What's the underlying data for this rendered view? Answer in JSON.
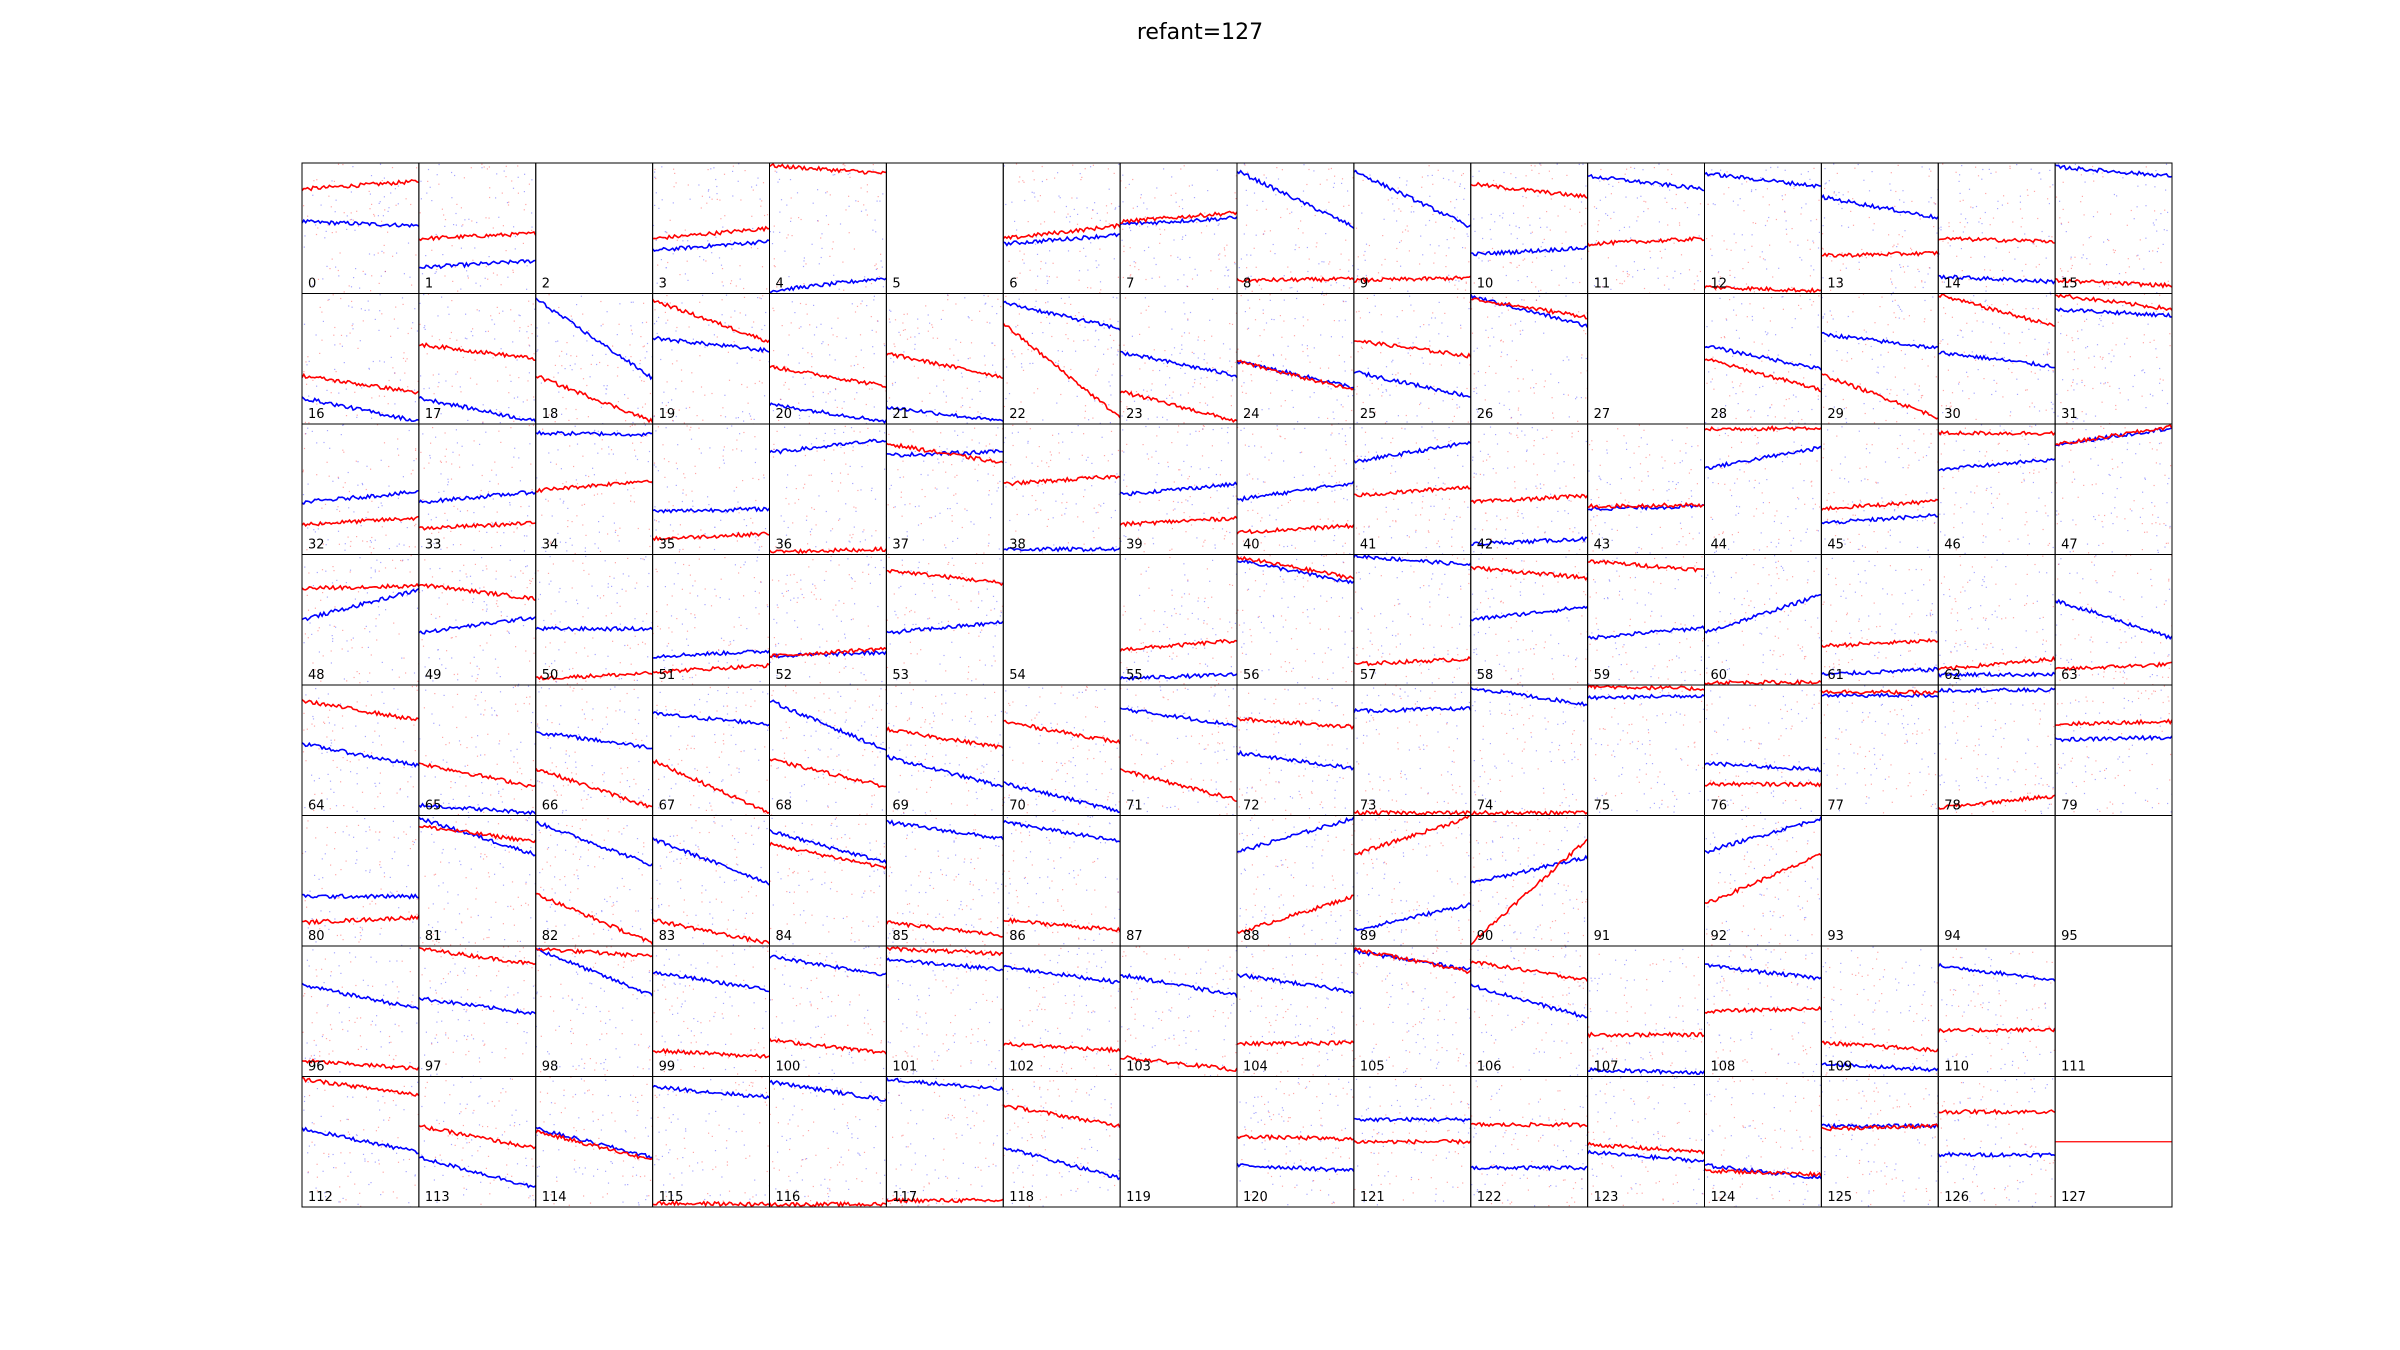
{
  "title": "refant=127",
  "chart_data": {
    "type": "scatter",
    "title": "refant=127",
    "grid_rows": 8,
    "grid_cols": 16,
    "colors": {
      "pol_a": "#0000ff",
      "pol_b": "#ff0000",
      "frame": "#000000"
    },
    "panels": [
      {
        "label": "0",
        "blue": [
          0.55,
          0.52
        ],
        "red": [
          0.8,
          0.86
        ]
      },
      {
        "label": "1",
        "blue": [
          0.2,
          0.25
        ],
        "red": [
          0.42,
          0.46
        ]
      },
      {
        "label": "2",
        "empty": true
      },
      {
        "label": "3",
        "blue": [
          0.33,
          0.4
        ],
        "red": [
          0.42,
          0.5
        ]
      },
      {
        "label": "4",
        "blue": [
          0.02,
          0.12
        ],
        "red": [
          0.98,
          0.92
        ]
      },
      {
        "label": "5",
        "empty": true
      },
      {
        "label": "6",
        "blue": [
          0.38,
          0.45
        ],
        "red": [
          0.42,
          0.52
        ]
      },
      {
        "label": "7",
        "blue": [
          0.53,
          0.58
        ],
        "red": [
          0.55,
          0.62
        ]
      },
      {
        "label": "8",
        "blue": [
          0.94,
          0.51
        ],
        "red": [
          0.1,
          0.11
        ]
      },
      {
        "label": "9",
        "blue": [
          0.94,
          0.51
        ],
        "red": [
          0.1,
          0.12
        ]
      },
      {
        "label": "10",
        "blue": [
          0.3,
          0.35
        ],
        "red": [
          0.84,
          0.74
        ]
      },
      {
        "label": "11",
        "blue": [
          0.9,
          0.8
        ],
        "red": [
          0.38,
          0.42
        ]
      },
      {
        "label": "12",
        "blue": [
          0.92,
          0.82
        ],
        "red": [
          0.05,
          0.02
        ]
      },
      {
        "label": "13",
        "blue": [
          0.74,
          0.58
        ],
        "red": [
          0.29,
          0.31
        ]
      },
      {
        "label": "14",
        "blue": [
          0.13,
          0.09
        ],
        "red": [
          0.42,
          0.4
        ]
      },
      {
        "label": "15",
        "blue": [
          0.97,
          0.9
        ],
        "red": [
          0.1,
          0.06
        ]
      },
      {
        "label": "16",
        "blue": [
          0.2,
          0.02
        ],
        "red": [
          0.37,
          0.24
        ]
      },
      {
        "label": "17",
        "blue": [
          0.2,
          0.02
        ],
        "red": [
          0.61,
          0.5
        ]
      },
      {
        "label": "18",
        "blue": [
          0.96,
          0.35
        ],
        "red": [
          0.37,
          0.02
        ]
      },
      {
        "label": "19",
        "blue": [
          0.66,
          0.56
        ],
        "red": [
          0.95,
          0.63
        ]
      },
      {
        "label": "20",
        "blue": [
          0.15,
          0.02
        ],
        "red": [
          0.44,
          0.29
        ]
      },
      {
        "label": "21",
        "blue": [
          0.13,
          0.02
        ],
        "red": [
          0.54,
          0.36
        ]
      },
      {
        "label": "22",
        "blue": [
          0.93,
          0.73
        ],
        "red": [
          0.77,
          0.05
        ]
      },
      {
        "label": "23",
        "blue": [
          0.55,
          0.37
        ],
        "red": [
          0.25,
          0.02
        ]
      },
      {
        "label": "24",
        "blue": [
          0.48,
          0.28
        ],
        "red": [
          0.48,
          0.26
        ]
      },
      {
        "label": "25",
        "blue": [
          0.4,
          0.21
        ],
        "red": [
          0.64,
          0.52
        ]
      },
      {
        "label": "26",
        "blue": [
          0.98,
          0.75
        ],
        "red": [
          0.96,
          0.82
        ]
      },
      {
        "label": "27",
        "empty": true
      },
      {
        "label": "28",
        "blue": [
          0.6,
          0.42
        ],
        "red": [
          0.5,
          0.26
        ]
      },
      {
        "label": "29",
        "blue": [
          0.69,
          0.58
        ],
        "red": [
          0.38,
          0.05
        ]
      },
      {
        "label": "30",
        "blue": [
          0.55,
          0.44
        ],
        "red": [
          0.99,
          0.75
        ]
      },
      {
        "label": "31",
        "blue": [
          0.88,
          0.83
        ],
        "red": [
          0.99,
          0.88
        ]
      },
      {
        "label": "32",
        "blue": [
          0.4,
          0.48
        ],
        "red": [
          0.23,
          0.28
        ]
      },
      {
        "label": "33",
        "blue": [
          0.4,
          0.48
        ],
        "red": [
          0.2,
          0.24
        ]
      },
      {
        "label": "34",
        "blue": [
          0.93,
          0.92
        ],
        "red": [
          0.49,
          0.57
        ]
      },
      {
        "label": "35",
        "blue": [
          0.33,
          0.35
        ],
        "red": [
          0.12,
          0.16
        ]
      },
      {
        "label": "36",
        "blue": [
          0.78,
          0.88
        ],
        "red": [
          0.02,
          0.04
        ]
      },
      {
        "label": "37",
        "blue": [
          0.76,
          0.79
        ],
        "red": [
          0.85,
          0.7
        ]
      },
      {
        "label": "38",
        "blue": [
          0.04,
          0.04
        ],
        "red": [
          0.54,
          0.6
        ]
      },
      {
        "label": "39",
        "blue": [
          0.46,
          0.54
        ],
        "red": [
          0.23,
          0.28
        ]
      },
      {
        "label": "40",
        "blue": [
          0.42,
          0.55
        ],
        "red": [
          0.17,
          0.22
        ]
      },
      {
        "label": "41",
        "blue": [
          0.71,
          0.86
        ],
        "red": [
          0.45,
          0.52
        ]
      },
      {
        "label": "42",
        "blue": [
          0.08,
          0.12
        ],
        "red": [
          0.4,
          0.45
        ]
      },
      {
        "label": "43",
        "blue": [
          0.35,
          0.37
        ],
        "red": [
          0.37,
          0.38
        ]
      },
      {
        "label": "44",
        "blue": [
          0.66,
          0.82
        ],
        "red": [
          0.96,
          0.97
        ]
      },
      {
        "label": "45",
        "blue": [
          0.24,
          0.3
        ],
        "red": [
          0.35,
          0.41
        ]
      },
      {
        "label": "46",
        "blue": [
          0.65,
          0.73
        ],
        "red": [
          0.93,
          0.93
        ]
      },
      {
        "label": "47",
        "blue": [
          0.84,
          0.97
        ],
        "red": [
          0.84,
          0.98
        ]
      },
      {
        "label": "48",
        "blue": [
          0.5,
          0.73
        ],
        "red": [
          0.74,
          0.76
        ]
      },
      {
        "label": "49",
        "blue": [
          0.4,
          0.52
        ],
        "red": [
          0.77,
          0.66
        ]
      },
      {
        "label": "50",
        "blue": [
          0.43,
          0.43
        ],
        "red": [
          0.05,
          0.09
        ]
      },
      {
        "label": "51",
        "blue": [
          0.22,
          0.26
        ],
        "red": [
          0.1,
          0.15
        ]
      },
      {
        "label": "52",
        "blue": [
          0.22,
          0.25
        ],
        "red": [
          0.22,
          0.28
        ]
      },
      {
        "label": "53",
        "blue": [
          0.4,
          0.48
        ],
        "red": [
          0.88,
          0.78
        ]
      },
      {
        "label": "54",
        "empty": true
      },
      {
        "label": "55",
        "blue": [
          0.05,
          0.08
        ],
        "red": [
          0.27,
          0.34
        ]
      },
      {
        "label": "56",
        "blue": [
          0.96,
          0.78
        ],
        "red": [
          0.98,
          0.82
        ]
      },
      {
        "label": "57",
        "blue": [
          0.99,
          0.92
        ],
        "red": [
          0.16,
          0.2
        ]
      },
      {
        "label": "58",
        "blue": [
          0.5,
          0.6
        ],
        "red": [
          0.9,
          0.82
        ]
      },
      {
        "label": "59",
        "blue": [
          0.36,
          0.44
        ],
        "red": [
          0.95,
          0.88
        ]
      },
      {
        "label": "60",
        "blue": [
          0.4,
          0.69
        ],
        "red": [
          0.02,
          0.02
        ]
      },
      {
        "label": "61",
        "blue": [
          0.08,
          0.12
        ],
        "red": [
          0.3,
          0.34
        ]
      },
      {
        "label": "62",
        "blue": [
          0.08,
          0.08
        ],
        "red": [
          0.12,
          0.2
        ]
      },
      {
        "label": "63",
        "blue": [
          0.65,
          0.36
        ],
        "red": [
          0.12,
          0.16
        ]
      },
      {
        "label": "64",
        "blue": [
          0.55,
          0.38
        ],
        "red": [
          0.88,
          0.73
        ]
      },
      {
        "label": "65",
        "blue": [
          0.08,
          0.02
        ],
        "red": [
          0.4,
          0.22
        ]
      },
      {
        "label": "66",
        "blue": [
          0.64,
          0.52
        ],
        "red": [
          0.36,
          0.06
        ]
      },
      {
        "label": "67",
        "blue": [
          0.78,
          0.7
        ],
        "red": [
          0.42,
          0.02
        ]
      },
      {
        "label": "68",
        "blue": [
          0.88,
          0.5
        ],
        "red": [
          0.43,
          0.22
        ]
      },
      {
        "label": "69",
        "blue": [
          0.45,
          0.22
        ],
        "red": [
          0.66,
          0.52
        ]
      },
      {
        "label": "70",
        "blue": [
          0.25,
          0.03
        ],
        "red": [
          0.72,
          0.56
        ]
      },
      {
        "label": "71",
        "blue": [
          0.82,
          0.69
        ],
        "red": [
          0.35,
          0.12
        ]
      },
      {
        "label": "72",
        "blue": [
          0.48,
          0.36
        ],
        "red": [
          0.74,
          0.68
        ]
      },
      {
        "label": "73",
        "blue": [
          0.8,
          0.82
        ],
        "red": [
          0.02,
          0.02
        ]
      },
      {
        "label": "74",
        "blue": [
          0.98,
          0.85
        ],
        "red": [
          0.02,
          0.02
        ]
      },
      {
        "label": "75",
        "blue": [
          0.9,
          0.92
        ],
        "red": [
          0.99,
          0.97
        ]
      },
      {
        "label": "76",
        "blue": [
          0.4,
          0.35
        ],
        "red": [
          0.24,
          0.24
        ]
      },
      {
        "label": "77",
        "blue": [
          0.92,
          0.92
        ],
        "red": [
          0.95,
          0.94
        ]
      },
      {
        "label": "78",
        "blue": [
          0.96,
          0.96
        ],
        "red": [
          0.06,
          0.15
        ]
      },
      {
        "label": "79",
        "blue": [
          0.58,
          0.6
        ],
        "red": [
          0.7,
          0.72
        ]
      },
      {
        "label": "80",
        "blue": [
          0.38,
          0.38
        ],
        "red": [
          0.18,
          0.22
        ]
      },
      {
        "label": "81",
        "blue": [
          0.98,
          0.7
        ],
        "red": [
          0.92,
          0.8
        ]
      },
      {
        "label": "82",
        "blue": [
          0.95,
          0.62
        ],
        "red": [
          0.4,
          0.02
        ]
      },
      {
        "label": "83",
        "blue": [
          0.82,
          0.48
        ],
        "red": [
          0.2,
          0.02
        ]
      },
      {
        "label": "84",
        "blue": [
          0.88,
          0.64
        ],
        "red": [
          0.78,
          0.6
        ]
      },
      {
        "label": "85",
        "blue": [
          0.95,
          0.82
        ],
        "red": [
          0.18,
          0.08
        ]
      },
      {
        "label": "86",
        "blue": [
          0.95,
          0.8
        ],
        "red": [
          0.2,
          0.12
        ]
      },
      {
        "label": "87",
        "empty": true
      },
      {
        "label": "88",
        "blue": [
          0.72,
          0.98
        ],
        "red": [
          0.1,
          0.38
        ]
      },
      {
        "label": "89",
        "blue": [
          0.12,
          0.32
        ],
        "red": [
          0.7,
          0.99
        ]
      },
      {
        "label": "90",
        "blue": [
          0.48,
          0.68
        ],
        "red": [
          0.02,
          0.82
        ]
      },
      {
        "label": "91",
        "empty": true
      },
      {
        "label": "92",
        "blue": [
          0.72,
          0.98
        ],
        "red": [
          0.32,
          0.7
        ]
      },
      {
        "label": "93",
        "empty": true
      },
      {
        "label": "94",
        "empty": true
      },
      {
        "label": "95",
        "empty": true
      },
      {
        "label": "96",
        "blue": [
          0.7,
          0.52
        ],
        "red": [
          0.12,
          0.06
        ]
      },
      {
        "label": "97",
        "blue": [
          0.6,
          0.48
        ],
        "red": [
          0.98,
          0.86
        ]
      },
      {
        "label": "98",
        "blue": [
          0.98,
          0.62
        ],
        "red": [
          0.98,
          0.92
        ]
      },
      {
        "label": "99",
        "blue": [
          0.8,
          0.66
        ],
        "red": [
          0.2,
          0.15
        ]
      },
      {
        "label": "100",
        "blue": [
          0.92,
          0.78
        ],
        "red": [
          0.28,
          0.18
        ]
      },
      {
        "label": "101",
        "blue": [
          0.9,
          0.82
        ],
        "red": [
          0.98,
          0.94
        ]
      },
      {
        "label": "102",
        "blue": [
          0.84,
          0.72
        ],
        "red": [
          0.25,
          0.2
        ]
      },
      {
        "label": "103",
        "blue": [
          0.78,
          0.62
        ],
        "red": [
          0.15,
          0.05
        ]
      },
      {
        "label": "104",
        "blue": [
          0.78,
          0.65
        ],
        "red": [
          0.25,
          0.26
        ]
      },
      {
        "label": "105",
        "blue": [
          0.96,
          0.82
        ],
        "red": [
          0.98,
          0.8
        ]
      },
      {
        "label": "106",
        "blue": [
          0.7,
          0.45
        ],
        "red": [
          0.88,
          0.74
        ]
      },
      {
        "label": "107",
        "blue": [
          0.05,
          0.03
        ],
        "red": [
          0.32,
          0.32
        ]
      },
      {
        "label": "108",
        "blue": [
          0.85,
          0.75
        ],
        "red": [
          0.5,
          0.52
        ]
      },
      {
        "label": "109",
        "blue": [
          0.1,
          0.05
        ],
        "red": [
          0.26,
          0.2
        ]
      },
      {
        "label": "110",
        "blue": [
          0.85,
          0.74
        ],
        "red": [
          0.35,
          0.36
        ]
      },
      {
        "label": "111",
        "empty": true
      },
      {
        "label": "112",
        "blue": [
          0.6,
          0.42
        ],
        "red": [
          0.98,
          0.86
        ]
      },
      {
        "label": "113",
        "blue": [
          0.38,
          0.15
        ],
        "red": [
          0.62,
          0.45
        ]
      },
      {
        "label": "114",
        "blue": [
          0.6,
          0.38
        ],
        "red": [
          0.58,
          0.36
        ]
      },
      {
        "label": "115",
        "blue": [
          0.92,
          0.84
        ],
        "red": [
          0.03,
          0.02
        ]
      },
      {
        "label": "116",
        "blue": [
          0.96,
          0.82
        ],
        "red": [
          0.02,
          0.02
        ]
      },
      {
        "label": "117",
        "blue": [
          0.98,
          0.9
        ],
        "red": [
          0.05,
          0.05
        ]
      },
      {
        "label": "118",
        "blue": [
          0.46,
          0.22
        ],
        "red": [
          0.78,
          0.62
        ]
      },
      {
        "label": "119",
        "empty": true
      },
      {
        "label": "120",
        "blue": [
          0.32,
          0.28
        ],
        "red": [
          0.54,
          0.52
        ]
      },
      {
        "label": "121",
        "blue": [
          0.67,
          0.67
        ],
        "red": [
          0.5,
          0.5
        ]
      },
      {
        "label": "122",
        "blue": [
          0.3,
          0.3
        ],
        "red": [
          0.63,
          0.63
        ]
      },
      {
        "label": "123",
        "blue": [
          0.42,
          0.35
        ],
        "red": [
          0.48,
          0.42
        ]
      },
      {
        "label": "124",
        "blue": [
          0.32,
          0.22
        ],
        "red": [
          0.28,
          0.25
        ]
      },
      {
        "label": "125",
        "blue": [
          0.62,
          0.62
        ],
        "red": [
          0.6,
          0.62
        ]
      },
      {
        "label": "126",
        "blue": [
          0.4,
          0.4
        ],
        "red": [
          0.73,
          0.73
        ]
      },
      {
        "label": "127",
        "reference": true,
        "red": [
          0.5,
          0.5
        ]
      }
    ]
  }
}
